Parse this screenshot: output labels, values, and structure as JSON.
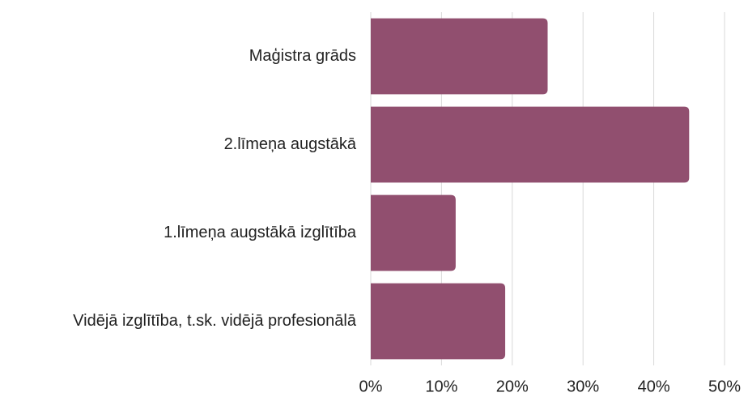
{
  "chart_data": {
    "type": "hbar",
    "categories": [
      "Maģistra grāds",
      "2.līmeņa augstākā",
      "1.līmeņa augstākā izglītība",
      "Vidējā izglītība, t.sk. vidējā profesionālā"
    ],
    "values": [
      25,
      45,
      12,
      19
    ],
    "color": "#914f6f",
    "xlim": [
      0,
      50
    ],
    "xticks": [
      {
        "value": 0,
        "label": "0%"
      },
      {
        "value": 10,
        "label": "10%"
      },
      {
        "value": 20,
        "label": "20%"
      },
      {
        "value": 30,
        "label": "30%"
      },
      {
        "value": 40,
        "label": "40%"
      },
      {
        "value": 50,
        "label": "50%"
      }
    ],
    "grid": true
  }
}
